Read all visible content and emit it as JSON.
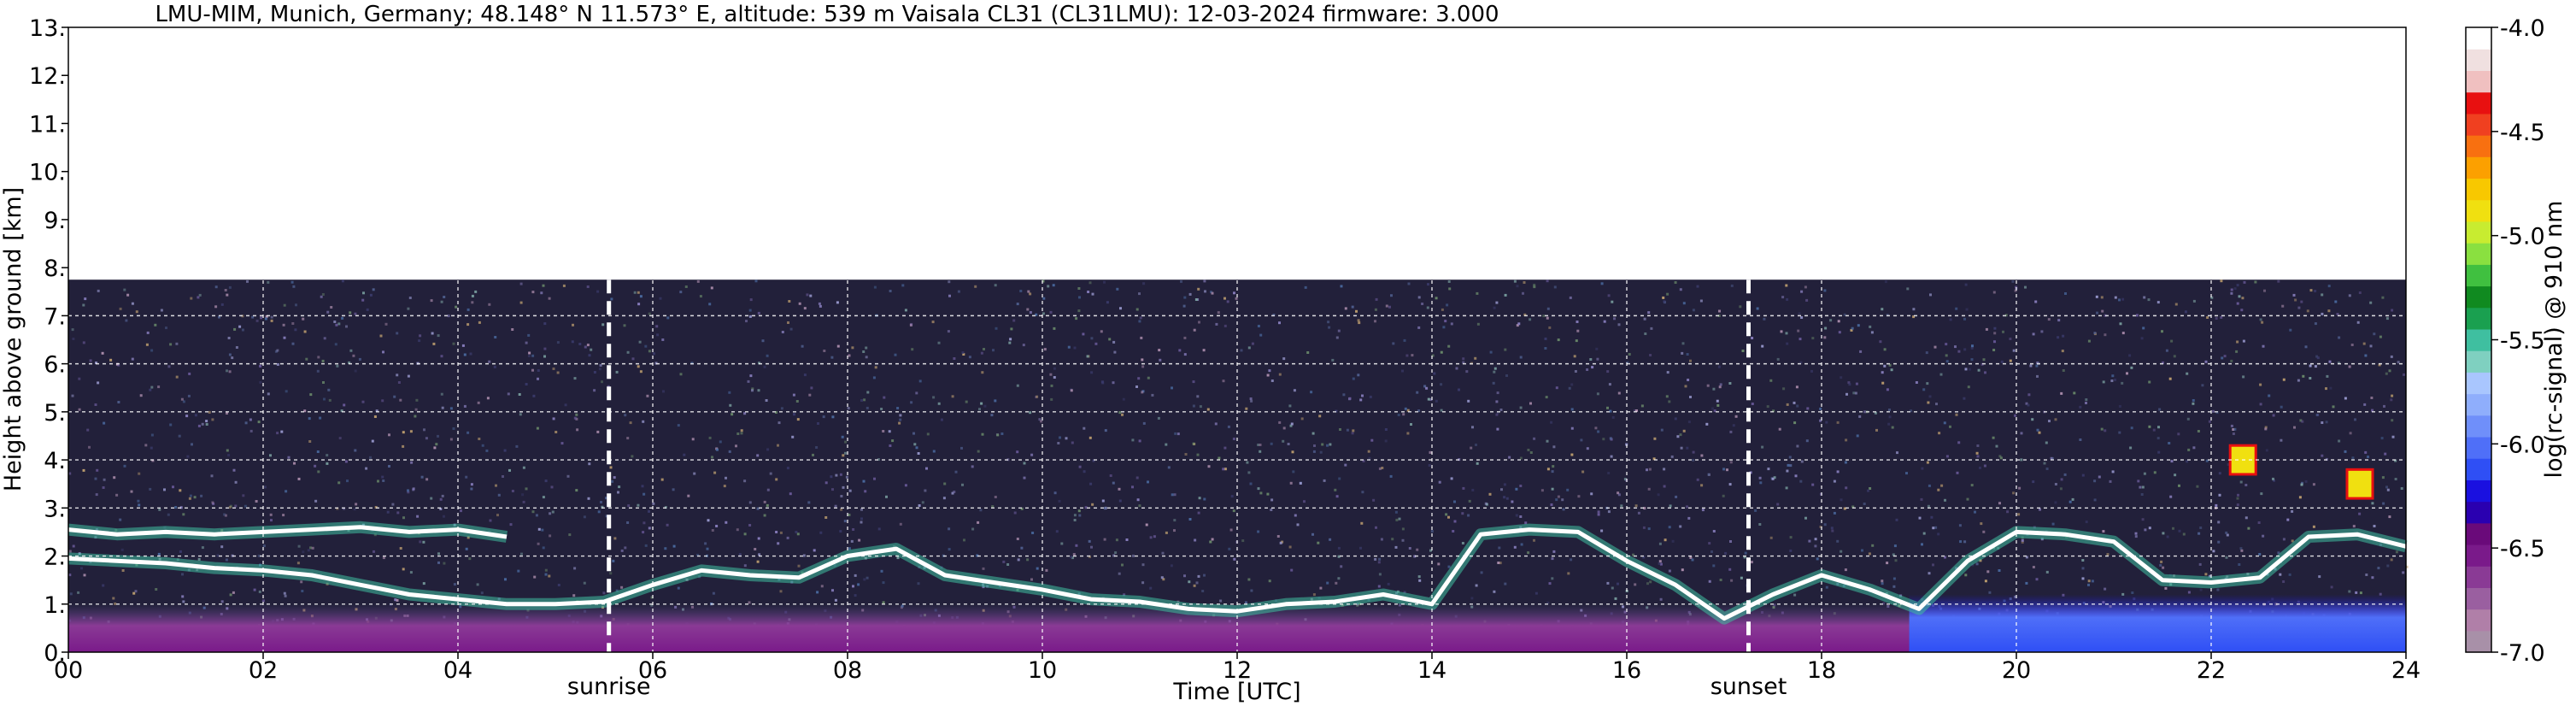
{
  "chart_data": {
    "type": "heatmap",
    "title": "LMU-MIM, Munich, Germany; 48.148° N 11.573° E, altitude: 539 m    Vaisala CL31 (CL31LMU): 12-03-2024    firmware: 3.000",
    "xlabel": "Time [UTC]",
    "ylabel": "Height above ground [km]",
    "xlim": [
      0,
      24
    ],
    "ylim": [
      0,
      13
    ],
    "x_ticks": [
      "00",
      "02",
      "04",
      "06",
      "08",
      "10",
      "12",
      "14",
      "16",
      "18",
      "20",
      "22",
      "24"
    ],
    "y_ticks": [
      "0.",
      "1.",
      "2.",
      "3.",
      "4.",
      "5.",
      "6.",
      "7.",
      "8.",
      "9.",
      "10.",
      "11.",
      "12.",
      "13."
    ],
    "grid": true,
    "colorbar": {
      "label": "log(rc-signal) @ 910 nm",
      "range": [
        -7.0,
        -4.0
      ],
      "ticks": [
        "-4.0",
        "-4.5",
        "-5.0",
        "-5.5",
        "-6.0",
        "-6.5",
        "-7.0"
      ],
      "colors": [
        "#a890a8",
        "#b07fa8",
        "#9a5fa0",
        "#8a3a95",
        "#7a1a8a",
        "#6a0a7a",
        "#2a00b0",
        "#1a10e0",
        "#2f4ff5",
        "#4f6ff8",
        "#6f8ffa",
        "#8faefc",
        "#a9c6fe",
        "#7fd0c0",
        "#3fbfa0",
        "#1aa050",
        "#108a20",
        "#40c040",
        "#8ae040",
        "#c8ec30",
        "#f0e010",
        "#f8c800",
        "#fca000",
        "#f87010",
        "#f04020",
        "#e81010",
        "#f0c0c0",
        "#f0e0e0",
        "#ffffff"
      ]
    },
    "signal_top_km": 7.75,
    "annotations": [
      {
        "label": "sunrise",
        "x": 5.55
      },
      {
        "label": "sunset",
        "x": 17.25
      }
    ],
    "boundary_layer_km": {
      "x": [
        0,
        0.5,
        1,
        1.5,
        2,
        2.5,
        3,
        3.5,
        4,
        4.5,
        5,
        5.5,
        6,
        6.5,
        7,
        7.5,
        8,
        8.5,
        9,
        9.5,
        10,
        10.5,
        11,
        11.5,
        12,
        12.5,
        13,
        13.5,
        14,
        14.5,
        15,
        15.5,
        16,
        16.5,
        17,
        17.5,
        18,
        18.5,
        19,
        19.5,
        20,
        20.5,
        21,
        21.5,
        22,
        22.5,
        23,
        23.5,
        24
      ],
      "y": [
        1.95,
        1.9,
        1.85,
        1.75,
        1.7,
        1.6,
        1.4,
        1.2,
        1.1,
        1.0,
        1.0,
        1.05,
        1.4,
        1.7,
        1.6,
        1.55,
        2.0,
        2.15,
        1.6,
        1.45,
        1.3,
        1.1,
        1.05,
        0.9,
        0.85,
        1.0,
        1.05,
        1.2,
        1.0,
        2.45,
        2.55,
        2.5,
        1.9,
        1.4,
        0.7,
        1.2,
        1.6,
        1.3,
        0.9,
        1.9,
        2.5,
        2.45,
        2.3,
        1.5,
        1.45,
        1.55,
        2.4,
        2.45,
        2.2
      ]
    },
    "upper_layer_km": {
      "x": [
        0,
        0.5,
        1,
        1.5,
        2,
        2.5,
        3,
        3.5,
        4,
        4.5
      ],
      "y": [
        2.55,
        2.45,
        2.5,
        2.45,
        2.5,
        2.55,
        2.6,
        2.5,
        2.55,
        2.4
      ]
    },
    "elevated_features": [
      {
        "x": 22.3,
        "y": 4.0
      },
      {
        "x": 23.5,
        "y": 3.5
      }
    ]
  }
}
